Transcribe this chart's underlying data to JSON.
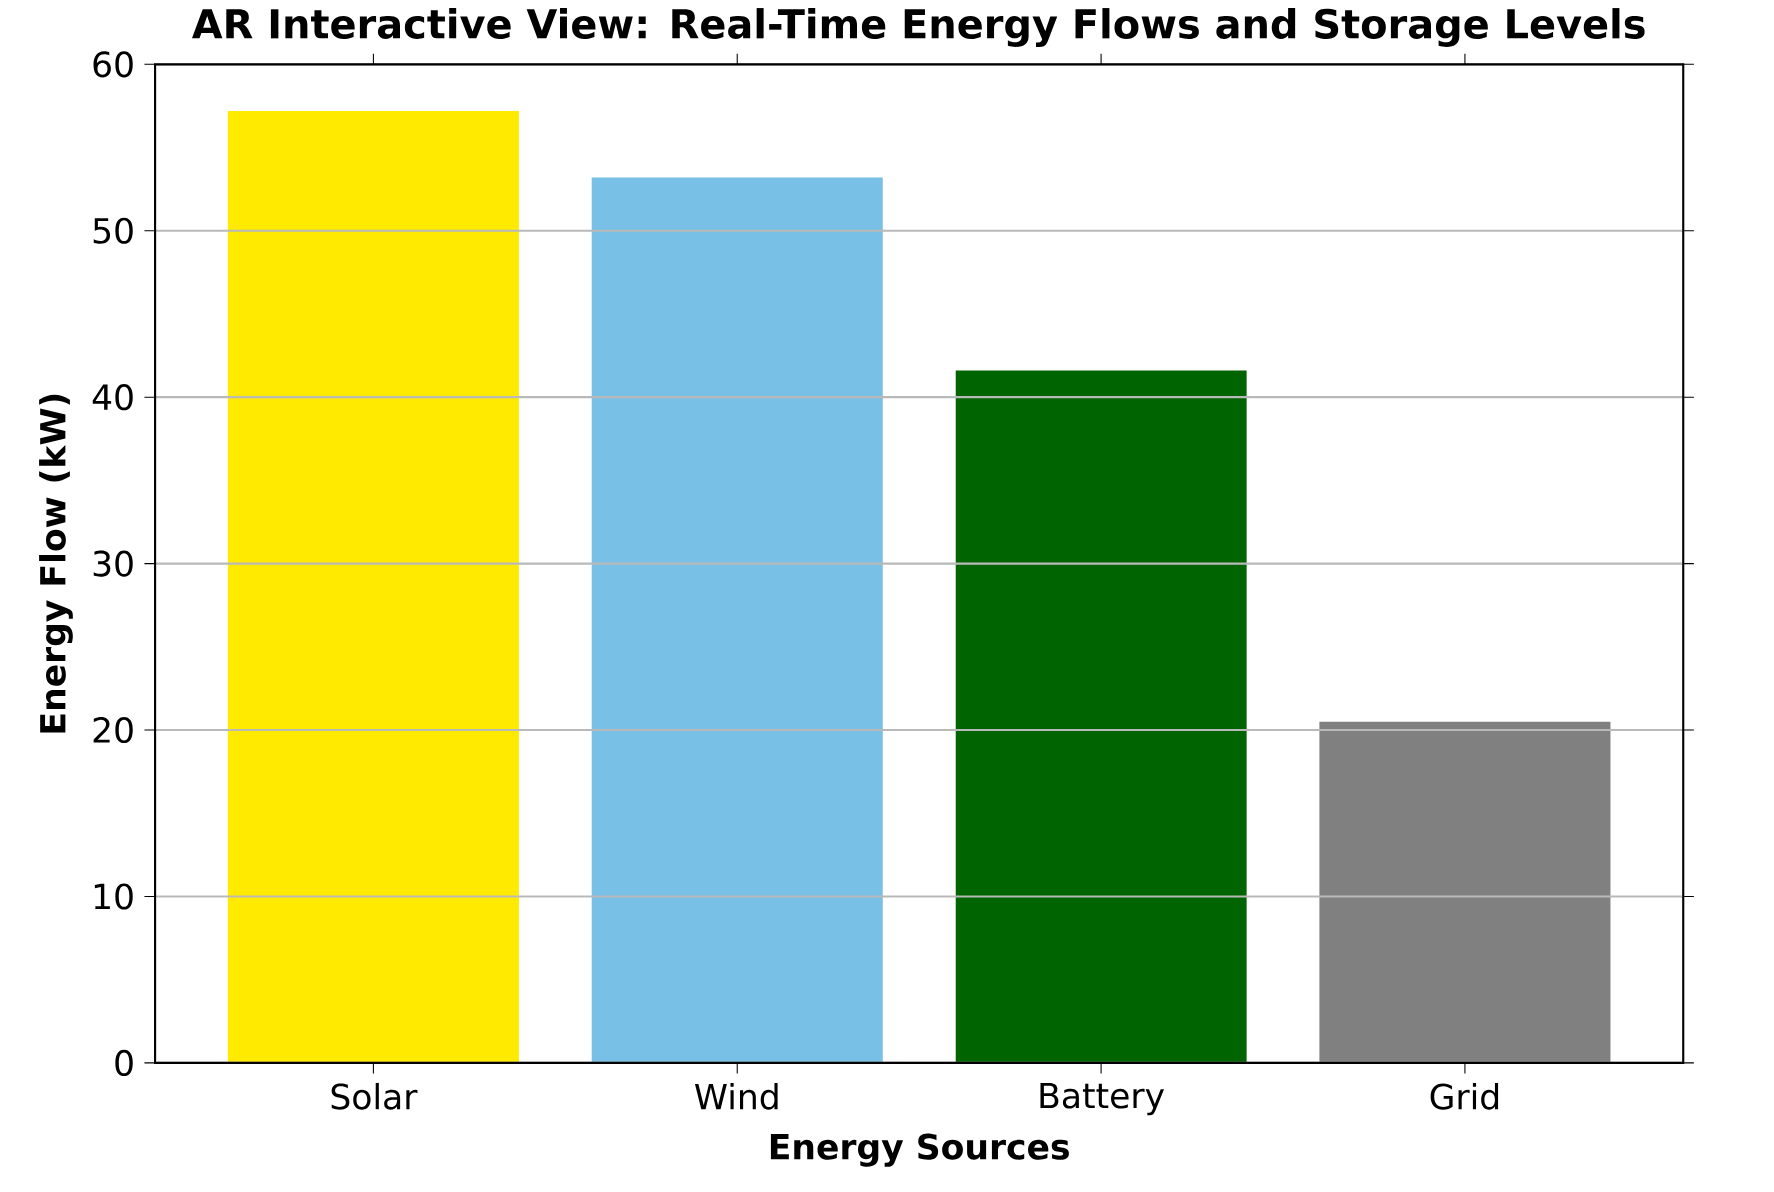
{
  "chart_data": {
    "type": "bar",
    "title": "AR Interactive View: Real-Time Energy Flows and Storage Levels",
    "xlabel": "Energy Sources",
    "ylabel": "Energy Flow (kW)",
    "categories": [
      "Solar",
      "Wind",
      "Battery",
      "Grid"
    ],
    "values": [
      57.2,
      53.2,
      41.6,
      20.5
    ],
    "colors": [
      "#ffea00",
      "#78c0e6",
      "#006400",
      "#808080"
    ],
    "ylim": [
      0,
      60
    ],
    "yticks": [
      0,
      10,
      20,
      30,
      40,
      50,
      60
    ],
    "grid": "y"
  }
}
